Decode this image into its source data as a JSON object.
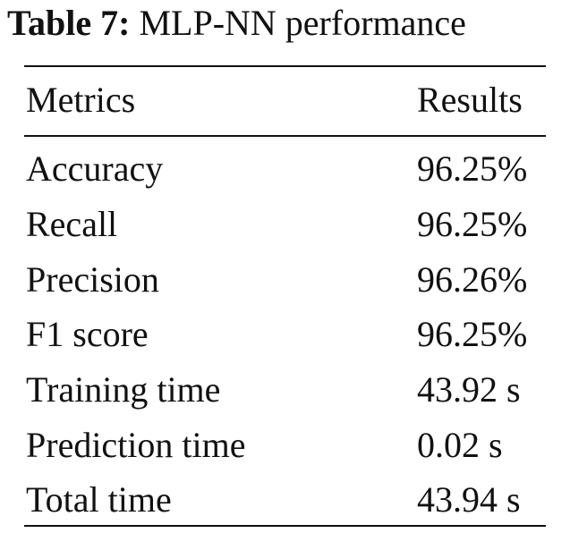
{
  "table": {
    "caption_label": "Table 7:",
    "caption_text": "MLP-NN performance",
    "headers": {
      "metric": "Metrics",
      "result": "Results"
    },
    "rows": [
      {
        "metric": "Accuracy",
        "result": "96.25%"
      },
      {
        "metric": "Recall",
        "result": "96.25%"
      },
      {
        "metric": "Precision",
        "result": "96.26%"
      },
      {
        "metric": "F1 score",
        "result": "96.25%"
      },
      {
        "metric": "Training time",
        "result": "43.92 s"
      },
      {
        "metric": "Prediction time",
        "result": "0.02 s"
      },
      {
        "metric": "Total time",
        "result": "43.94 s"
      }
    ]
  }
}
